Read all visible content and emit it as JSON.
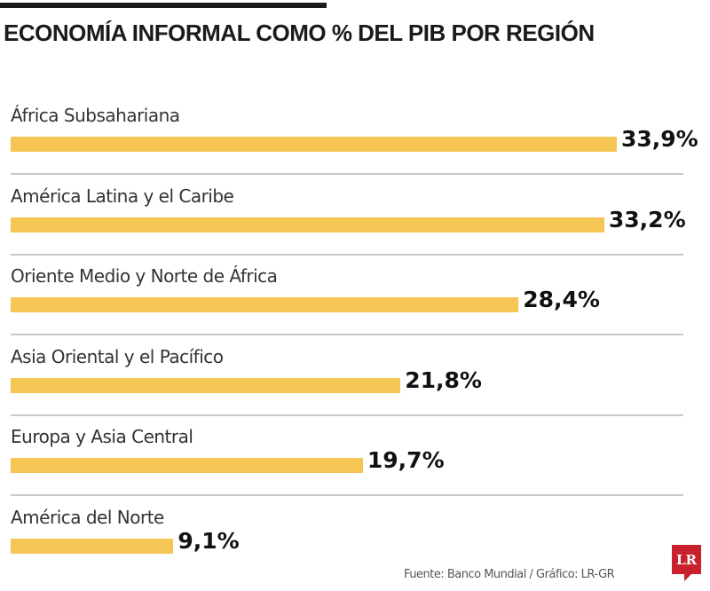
{
  "chart_data": {
    "type": "bar",
    "orientation": "horizontal",
    "title": "ECONOMÍA INFORMAL COMO % DEL PIB POR REGIÓN",
    "categories": [
      "África Subsahariana",
      "América Latina y el Caribe",
      "Oriente Medio y Norte de África",
      "Asia Oriental y el Pacífico",
      "Europa y Asia Central",
      "América del Norte"
    ],
    "values": [
      33.9,
      33.2,
      28.4,
      21.8,
      19.7,
      9.1
    ],
    "value_labels": [
      "33,9%",
      "33,2%",
      "28,4%",
      "21,8%",
      "19,7%",
      "9,1%"
    ],
    "unit": "%",
    "bar_color": "#f5c653",
    "grid": false
  },
  "footer": {
    "source": "Fuente: Banco Mundial / Gráfico: LR-GR",
    "logo": "LR"
  }
}
